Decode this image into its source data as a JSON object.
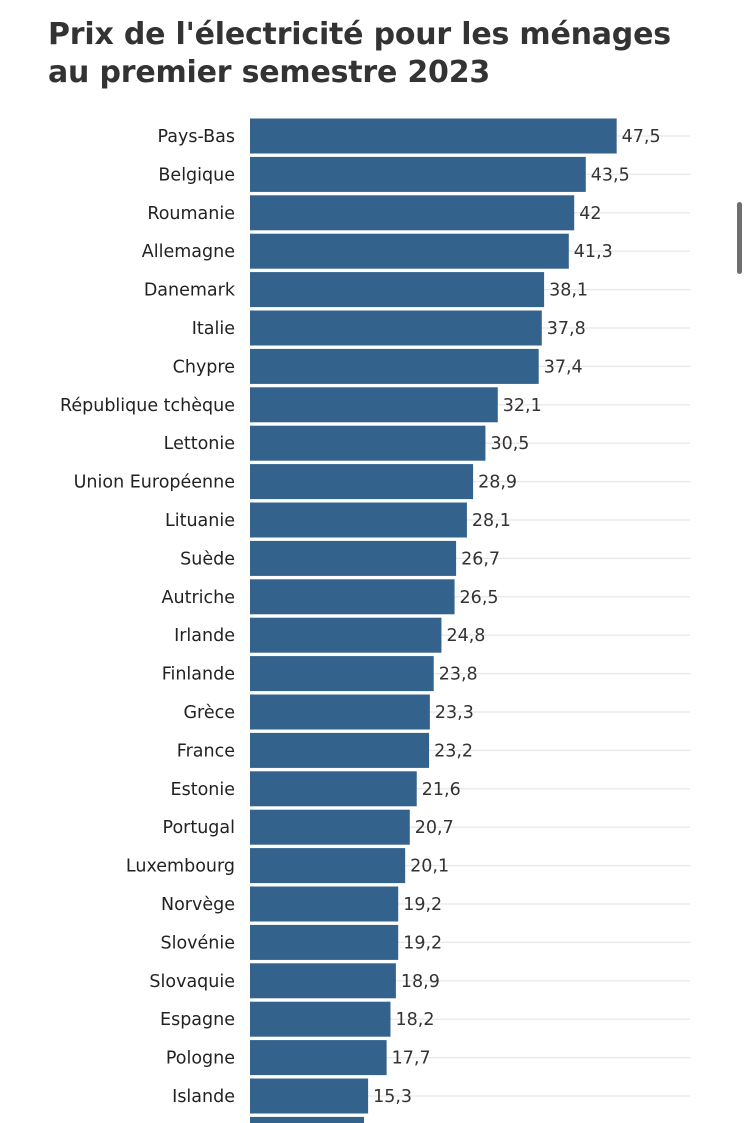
{
  "chart_data": {
    "type": "bar",
    "orientation": "horizontal",
    "title": "Prix de l'électricité pour les ménages au premier semestre 2023",
    "categories": [
      "Pays-Bas",
      "Belgique",
      "Roumanie",
      "Allemagne",
      "Danemark",
      "Italie",
      "Chypre",
      "République tchèque",
      "Lettonie",
      "Union Européenne",
      "Lituanie",
      "Suède",
      "Autriche",
      "Irlande",
      "Finlande",
      "Grèce",
      "France",
      "Estonie",
      "Portugal",
      "Luxembourg",
      "Norvège",
      "Slovénie",
      "Slovaquie",
      "Espagne",
      "Pologne",
      "Islande"
    ],
    "values": [
      47.5,
      43.5,
      42,
      41.3,
      38.1,
      37.8,
      37.4,
      32.1,
      30.5,
      28.9,
      28.1,
      26.7,
      26.5,
      24.8,
      23.8,
      23.3,
      23.2,
      21.6,
      20.7,
      20.1,
      19.2,
      19.2,
      18.9,
      18.2,
      17.7,
      15.3
    ],
    "value_labels": [
      "47,5",
      "43,5",
      "42",
      "41,3",
      "38,1",
      "37,8",
      "37,4",
      "32,1",
      "30,5",
      "28,9",
      "28,1",
      "26,7",
      "26,5",
      "24,8",
      "23,8",
      "23,3",
      "23,2",
      "21,6",
      "20,7",
      "20,1",
      "19,2",
      "19,2",
      "18,9",
      "18,2",
      "17,7",
      "15,3"
    ],
    "xlim": [
      0,
      57
    ],
    "grid": true,
    "bar_color": "#33628c",
    "grid_color": "#e8e8e8"
  }
}
